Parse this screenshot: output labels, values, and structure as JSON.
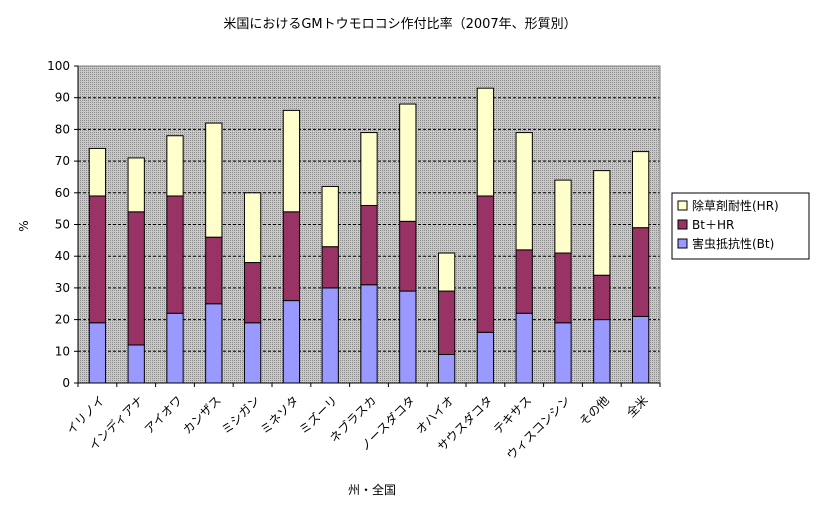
{
  "chart_data": {
    "type": "bar",
    "stacked": true,
    "title": "米国におけるGMトウモロコシ作付比率（2007年、形質別）",
    "xlabel": "州・全国",
    "ylabel": "%",
    "ylim": [
      0,
      100
    ],
    "yticks": [
      "0",
      "10",
      "20",
      "30",
      "40",
      "50",
      "60",
      "70",
      "80",
      "90",
      "100"
    ],
    "grid": true,
    "legend_position": "right",
    "categories": [
      "イリノイ",
      "インディアナ",
      "アイオワ",
      "カンザス",
      "ミシガン",
      "ミネソタ",
      "ミズーリ",
      "ネブラスカ",
      "ノースダコタ",
      "オハイオ",
      "サウスダコタ",
      "テキサス",
      "ウィスコンシン",
      "その他",
      "全米"
    ],
    "series": [
      {
        "name": "害虫抵抗性(Bt)",
        "color": "#9999ff",
        "values": [
          19,
          12,
          22,
          25,
          19,
          26,
          30,
          31,
          29,
          9,
          16,
          22,
          19,
          20,
          21
        ]
      },
      {
        "name": "Bt＋HR",
        "color": "#993366",
        "values": [
          40,
          42,
          37,
          21,
          19,
          28,
          13,
          25,
          22,
          20,
          43,
          20,
          22,
          14,
          28
        ]
      },
      {
        "name": "除草剤耐性(HR)",
        "color": "#ffffcc",
        "values": [
          15,
          17,
          19,
          36,
          22,
          32,
          19,
          23,
          37,
          12,
          34,
          37,
          23,
          33,
          24
        ]
      }
    ],
    "legend_order": [
      "除草剤耐性(HR)",
      "Bt＋HR",
      "害虫抵抗性(Bt)"
    ]
  }
}
